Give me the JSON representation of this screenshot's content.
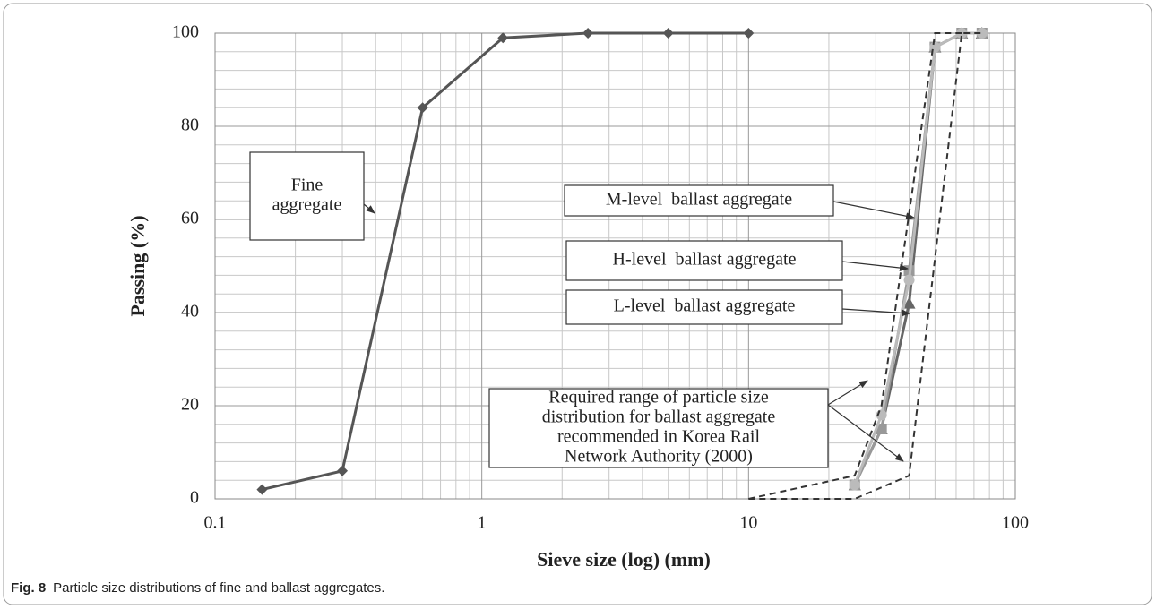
{
  "chart_data": {
    "type": "line",
    "xlabel": "Sieve size (log) (mm)",
    "ylabel": "Passing (%)",
    "xscale": "log",
    "xlim": [
      0.1,
      100
    ],
    "xticks": [
      0.1,
      1,
      10,
      100
    ],
    "ylim": [
      0,
      100
    ],
    "yticks": [
      0,
      20,
      40,
      60,
      80,
      100
    ],
    "grid": true,
    "series": [
      {
        "color": "#555555",
        "marker": "diamond",
        "x": [
          0.15,
          0.3,
          0.6,
          1.2,
          2.5,
          5,
          10
        ],
        "values": [
          2,
          6,
          84,
          99,
          100,
          100,
          100
        ]
      },
      {
        "color": "#666666",
        "marker": "triangle",
        "x": [
          25,
          31.5,
          40,
          50,
          63,
          75
        ],
        "values": [
          3,
          15,
          42,
          97,
          100,
          100
        ]
      },
      {
        "color": "#999999",
        "marker": "square",
        "x": [
          25,
          31.5,
          40,
          50,
          63,
          75
        ],
        "values": [
          3,
          15,
          49,
          97,
          100,
          100
        ]
      },
      {
        "color": "#bbbbbb",
        "marker": "circle",
        "x": [
          25,
          31.5,
          40,
          50,
          63,
          75
        ],
        "values": [
          3,
          18,
          47,
          97,
          100,
          100
        ]
      },
      {
        "color": "#333333",
        "dash": true,
        "x": [
          10,
          25,
          31.5,
          50,
          63
        ],
        "values": [
          0,
          5,
          20,
          100,
          100
        ]
      },
      {
        "color": "#333333",
        "dash": true,
        "x": [
          10,
          25,
          40,
          63,
          75
        ],
        "values": [
          0,
          0,
          5,
          100,
          100
        ]
      }
    ],
    "annotations": [
      {
        "lines": [
          "Fine",
          "aggregate"
        ]
      },
      {
        "lines": [
          "M-level  ballast aggregate"
        ]
      },
      {
        "lines": [
          "H-level  ballast aggregate"
        ]
      },
      {
        "lines": [
          "L-level  ballast aggregate"
        ]
      },
      {
        "lines": [
          "Required range of particle size",
          "distribution for ballast aggregate",
          "recommended in Korea Rail",
          "Network Authority (2000)"
        ]
      }
    ]
  },
  "caption": {
    "label": "Fig. 8",
    "text": "Particle size distributions of fine and ballast aggregates."
  }
}
